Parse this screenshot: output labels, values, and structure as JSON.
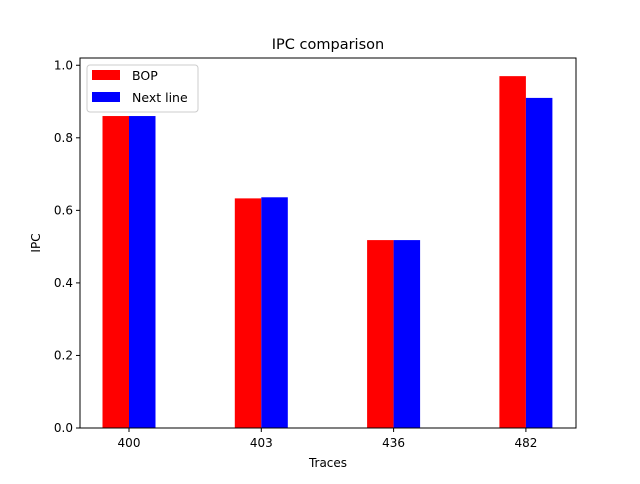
{
  "chart_data": {
    "type": "bar",
    "title": "IPC comparison",
    "xlabel": "Traces",
    "ylabel": "IPC",
    "categories": [
      "400",
      "403",
      "436",
      "482"
    ],
    "series": [
      {
        "name": "BOP",
        "color": "#ff0000",
        "values": [
          0.86,
          0.633,
          0.518,
          0.97
        ]
      },
      {
        "name": "Next line",
        "color": "#0000ff",
        "values": [
          0.86,
          0.636,
          0.518,
          0.91
        ]
      }
    ],
    "ylim": [
      0,
      1.02
    ],
    "yticks": [
      "0.0",
      "0.2",
      "0.4",
      "0.6",
      "0.8",
      "1.0"
    ],
    "grid": false,
    "legend_position": "top-left"
  }
}
